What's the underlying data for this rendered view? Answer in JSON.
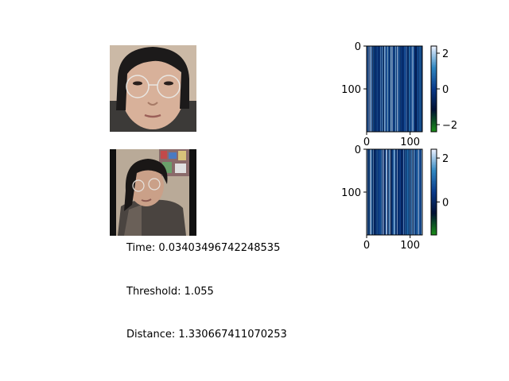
{
  "chart_data": [
    {
      "type": "heatmap",
      "description_of_data": "face embedding 1",
      "rows": 200,
      "cols": 128,
      "x_ticks": [
        "0",
        "100"
      ],
      "y_ticks": [
        "0",
        "100"
      ],
      "colorbar_ticks": [
        "2",
        "0",
        "−2"
      ],
      "colorbar_range": [
        -2.4,
        2.4
      ],
      "colormap": [
        "#1a8a1a",
        "#001133",
        "#0a3a8a",
        "#2f86c0",
        "#e8f0ff"
      ]
    },
    {
      "type": "heatmap",
      "description_of_data": "face embedding 2",
      "rows": 200,
      "cols": 128,
      "x_ticks": [
        "0",
        "100"
      ],
      "y_ticks": [
        "0",
        "100"
      ],
      "colorbar_ticks": [
        "2",
        "0"
      ],
      "colorbar_range": [
        -1.5,
        2.4
      ],
      "colormap": [
        "#1a8a1a",
        "#001133",
        "#0a3a8a",
        "#2f86c0",
        "#e8f0ff"
      ]
    }
  ],
  "info": {
    "time": "Time: 0.03403496742248535",
    "threshold": "Threshold: 1.055",
    "distance": "Distance: 1.330667411070253"
  }
}
